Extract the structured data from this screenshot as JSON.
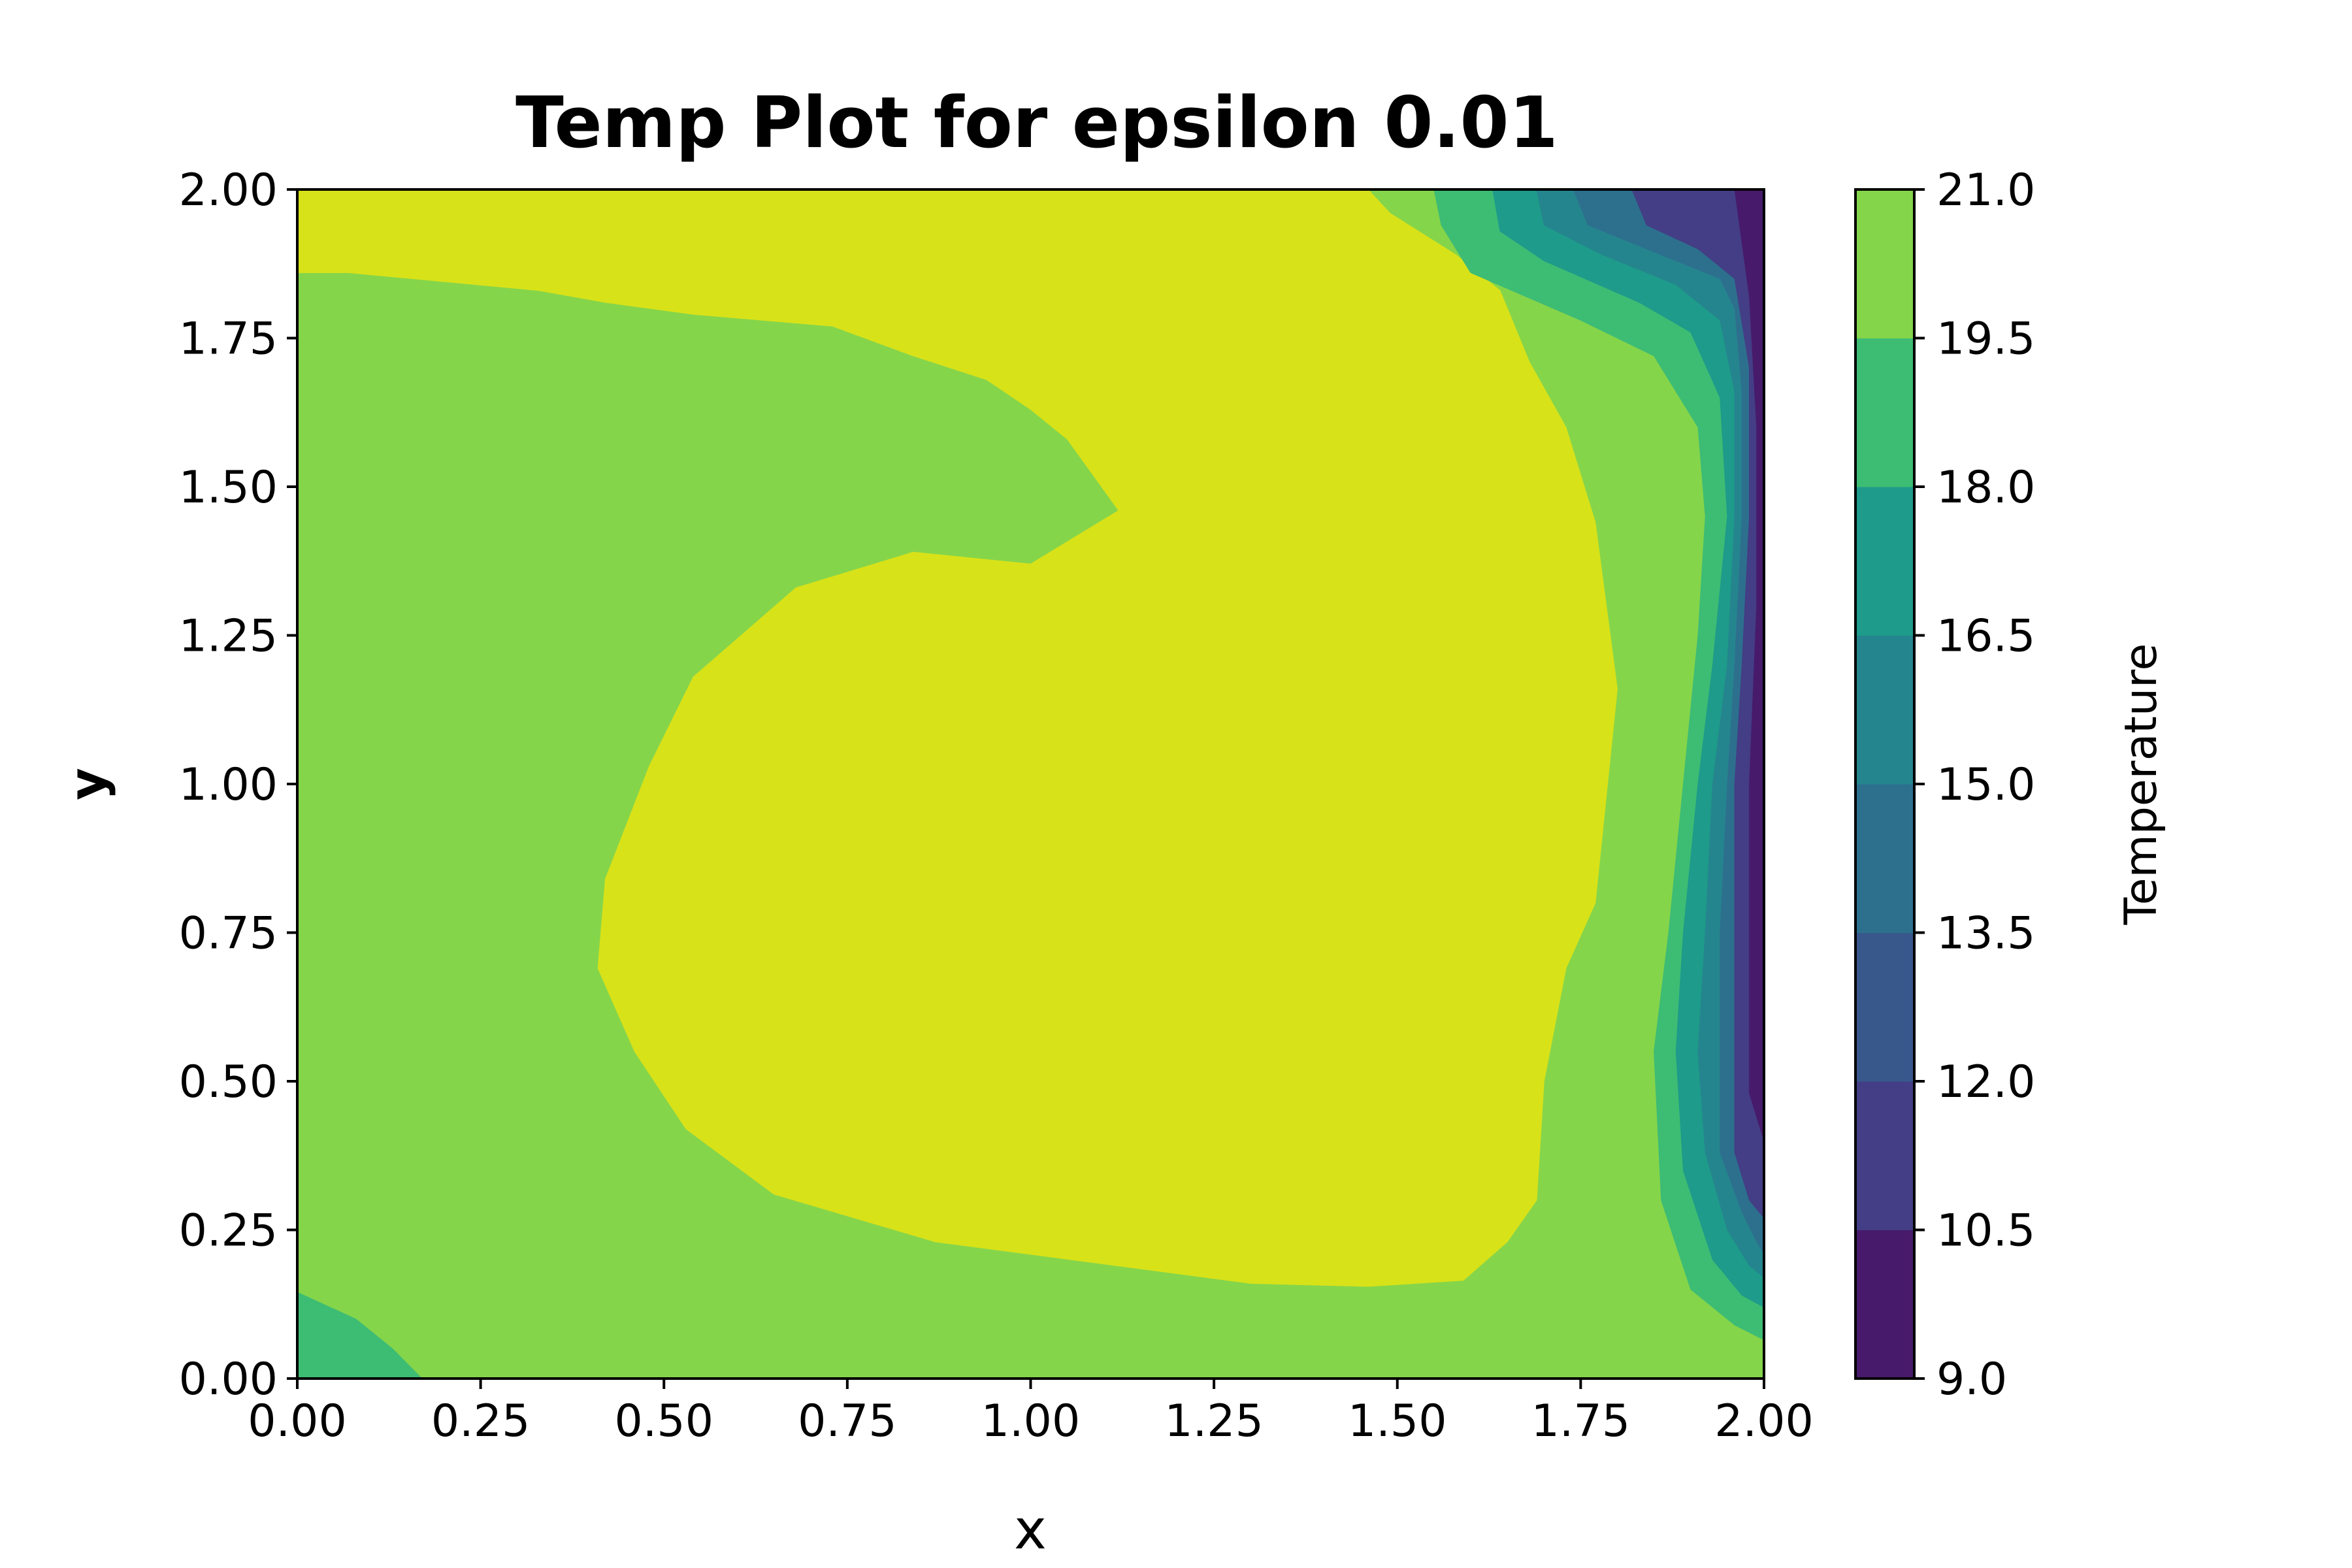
{
  "chart_data": {
    "type": "contourf",
    "title": "Temp Plot for epsilon 0.01",
    "xlabel": "x",
    "ylabel": "y",
    "xlim": [
      0,
      2
    ],
    "ylim": [
      0,
      2
    ],
    "xticks": [
      "0.00",
      "0.25",
      "0.50",
      "0.75",
      "1.00",
      "1.25",
      "1.50",
      "1.75",
      "2.00"
    ],
    "yticks": [
      "0.00",
      "0.25",
      "0.50",
      "0.75",
      "1.00",
      "1.25",
      "1.50",
      "1.75",
      "2.00"
    ],
    "colorbar": {
      "label": "Temperature",
      "levels": [
        9.0,
        10.5,
        12.0,
        13.5,
        15.0,
        16.5,
        18.0,
        19.5,
        21.0
      ],
      "tick_labels": [
        "9.0",
        "10.5",
        "12.0",
        "13.5",
        "15.0",
        "16.5",
        "18.0",
        "19.5",
        "21.0"
      ],
      "colors": [
        "#481a6c",
        "#433e85",
        "#38588c",
        "#2d708e",
        "#25858e",
        "#1e9b8a",
        "#3dbc74",
        "#85d54a",
        "#d8e219"
      ]
    },
    "regions": [
      {
        "band": [
          19.5,
          21.0
        ],
        "color": "#d8e219",
        "points": [
          [
            0.0,
            1.86
          ],
          [
            0.07,
            1.86
          ],
          [
            0.33,
            1.83
          ],
          [
            0.42,
            1.81
          ],
          [
            0.54,
            1.79
          ],
          [
            0.73,
            1.77
          ],
          [
            0.84,
            1.72
          ],
          [
            0.94,
            1.68
          ],
          [
            1.0,
            1.63
          ],
          [
            1.05,
            1.58
          ],
          [
            1.12,
            1.46
          ],
          [
            1.0,
            1.37
          ],
          [
            0.84,
            1.39
          ],
          [
            0.68,
            1.33
          ],
          [
            0.54,
            1.18
          ],
          [
            0.48,
            1.03
          ],
          [
            0.42,
            0.84
          ],
          [
            0.41,
            0.69
          ],
          [
            0.46,
            0.55
          ],
          [
            0.53,
            0.42
          ],
          [
            0.65,
            0.31
          ],
          [
            0.87,
            0.23
          ],
          [
            1.3,
            0.16
          ],
          [
            1.46,
            0.155
          ],
          [
            1.59,
            0.165
          ],
          [
            1.65,
            0.23
          ],
          [
            1.69,
            0.3
          ],
          [
            1.7,
            0.5
          ],
          [
            1.73,
            0.69
          ],
          [
            1.77,
            0.8
          ],
          [
            1.8,
            1.16
          ],
          [
            1.77,
            1.44
          ],
          [
            1.73,
            1.6
          ],
          [
            1.68,
            1.71
          ],
          [
            1.64,
            1.83
          ],
          [
            1.58,
            1.89
          ],
          [
            1.49,
            1.96
          ],
          [
            1.46,
            2.0
          ],
          [
            0.0,
            2.0
          ]
        ]
      },
      {
        "band": [
          16.5,
          18.0
        ],
        "color": "#3dbc74",
        "points": [
          [
            0.0,
            0.0
          ],
          [
            0.17,
            0.0
          ],
          [
            0.13,
            0.05
          ],
          [
            0.08,
            0.1
          ],
          [
            0.0,
            0.145
          ]
        ]
      },
      {
        "band": [
          16.5,
          18.0
        ],
        "color": "#3dbc74",
        "points": [
          [
            1.55,
            2.0
          ],
          [
            1.56,
            1.94
          ],
          [
            1.6,
            1.86
          ],
          [
            1.75,
            1.78
          ],
          [
            1.85,
            1.72
          ],
          [
            1.91,
            1.6
          ],
          [
            1.92,
            1.45
          ],
          [
            1.91,
            1.25
          ],
          [
            1.89,
            1.0
          ],
          [
            1.87,
            0.75
          ],
          [
            1.85,
            0.55
          ],
          [
            1.86,
            0.3
          ],
          [
            1.9,
            0.15
          ],
          [
            1.96,
            0.09
          ],
          [
            2.0,
            0.065
          ],
          [
            2.0,
            2.0
          ]
        ]
      },
      {
        "band": [
          15.0,
          16.5
        ],
        "color": "#1e9b8a",
        "points": [
          [
            1.63,
            2.0
          ],
          [
            1.64,
            1.93
          ],
          [
            1.7,
            1.88
          ],
          [
            1.83,
            1.81
          ],
          [
            1.9,
            1.76
          ],
          [
            1.94,
            1.65
          ],
          [
            1.95,
            1.45
          ],
          [
            1.93,
            1.2
          ],
          [
            1.91,
            1.0
          ],
          [
            1.89,
            0.75
          ],
          [
            1.88,
            0.55
          ],
          [
            1.89,
            0.35
          ],
          [
            1.93,
            0.2
          ],
          [
            1.97,
            0.14
          ],
          [
            2.0,
            0.12
          ],
          [
            2.0,
            2.0
          ]
        ]
      },
      {
        "band": [
          13.5,
          15.0
        ],
        "color": "#25858e",
        "points": [
          [
            1.69,
            2.0
          ],
          [
            1.7,
            1.94
          ],
          [
            1.78,
            1.89
          ],
          [
            1.88,
            1.84
          ],
          [
            1.94,
            1.78
          ],
          [
            1.96,
            1.66
          ],
          [
            1.96,
            1.45
          ],
          [
            1.95,
            1.2
          ],
          [
            1.93,
            1.0
          ],
          [
            1.92,
            0.75
          ],
          [
            1.91,
            0.55
          ],
          [
            1.92,
            0.38
          ],
          [
            1.95,
            0.25
          ],
          [
            1.98,
            0.19
          ],
          [
            2.0,
            0.17
          ],
          [
            2.0,
            2.0
          ]
        ]
      },
      {
        "band": [
          12.0,
          13.5
        ],
        "color": "#2d708e",
        "points": [
          [
            1.74,
            2.0
          ],
          [
            1.76,
            1.94
          ],
          [
            1.86,
            1.89
          ],
          [
            1.94,
            1.85
          ],
          [
            1.96,
            1.8
          ],
          [
            1.97,
            1.66
          ],
          [
            1.97,
            1.45
          ],
          [
            1.96,
            1.2
          ],
          [
            1.95,
            1.0
          ],
          [
            1.94,
            0.75
          ],
          [
            1.94,
            0.55
          ],
          [
            1.94,
            0.38
          ],
          [
            1.97,
            0.28
          ],
          [
            1.99,
            0.23
          ],
          [
            2.0,
            0.21
          ],
          [
            2.0,
            2.0
          ]
        ]
      },
      {
        "band": [
          10.5,
          12.0
        ],
        "color": "#433e85",
        "points": [
          [
            1.82,
            2.0
          ],
          [
            1.84,
            1.94
          ],
          [
            1.91,
            1.9
          ],
          [
            1.96,
            1.85
          ],
          [
            1.98,
            1.7
          ],
          [
            1.98,
            1.45
          ],
          [
            1.97,
            1.2
          ],
          [
            1.96,
            1.0
          ],
          [
            1.96,
            0.75
          ],
          [
            1.96,
            0.55
          ],
          [
            1.96,
            0.38
          ],
          [
            1.98,
            0.3
          ],
          [
            2.0,
            0.27
          ],
          [
            2.0,
            2.0
          ]
        ]
      },
      {
        "band": [
          9.0,
          10.5
        ],
        "color": "#481a6c",
        "points": [
          [
            1.96,
            2.0
          ],
          [
            1.98,
            1.82
          ],
          [
            1.99,
            1.6
          ],
          [
            1.99,
            1.3
          ],
          [
            1.98,
            1.0
          ],
          [
            1.98,
            0.7
          ],
          [
            1.98,
            0.48
          ],
          [
            2.0,
            0.4
          ],
          [
            2.0,
            2.0
          ]
        ]
      }
    ]
  }
}
